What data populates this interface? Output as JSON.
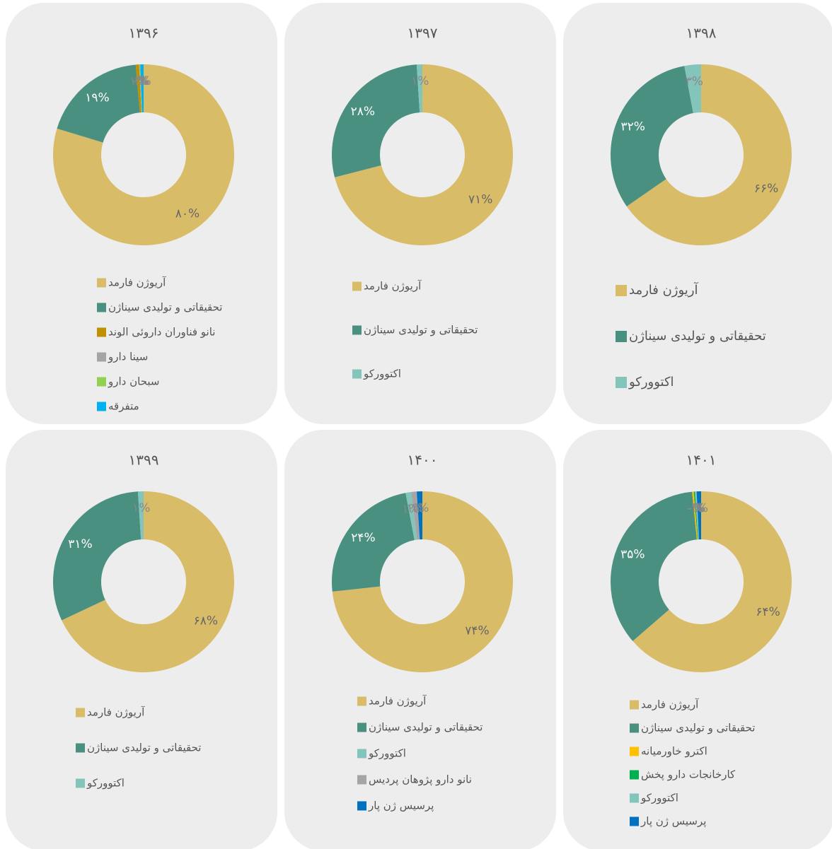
{
  "chart_data": [
    {
      "type": "pie",
      "title": "۱۳۹۶",
      "categories": [
        "آریوژن فارمد",
        "تحقیقاتی و تولیدی سیناژن",
        "نانو فناوران داروئی الوند",
        "سینا دارو",
        "سبحان دارو",
        "متفرقه"
      ],
      "values": [
        80,
        19,
        0.6,
        0.1,
        0.1,
        0.6
      ],
      "value_labels": [
        "۸۰%",
        "۱۹%",
        "۱%",
        "۰%",
        "۰%",
        "۱%"
      ],
      "colors": [
        "#d9bc68",
        "#4a9080",
        "#bf9000",
        "#a5a5a5",
        "#92d050",
        "#00b0f0"
      ]
    },
    {
      "type": "pie",
      "title": "۱۳۹۷",
      "categories": [
        "آریوژن فارمد",
        "تحقیقاتی و تولیدی سیناژن",
        "اکتوورکو"
      ],
      "values": [
        71,
        28,
        1
      ],
      "value_labels": [
        "۷۱%",
        "۲۸%",
        "۱%"
      ],
      "colors": [
        "#d9bc68",
        "#4a9080",
        "#84c5bb"
      ]
    },
    {
      "type": "pie",
      "title": "۱۳۹۸",
      "categories": [
        "آریوژن فارمد",
        "تحقیقاتی و تولیدی سیناژن",
        "اکتوورکو"
      ],
      "values": [
        66,
        32,
        3
      ],
      "value_labels": [
        "۶۶%",
        "۳۲%",
        "۳%"
      ],
      "colors": [
        "#d9bc68",
        "#4a9080",
        "#84c5bb"
      ]
    },
    {
      "type": "pie",
      "title": "۱۳۹۹",
      "categories": [
        "آریوژن فارمد",
        "تحقیقاتی و تولیدی سیناژن",
        "اکتوورکو"
      ],
      "values": [
        68,
        31,
        1
      ],
      "value_labels": [
        "۶۸%",
        "۳۱%",
        "۱%"
      ],
      "colors": [
        "#d9bc68",
        "#4a9080",
        "#84c5bb"
      ]
    },
    {
      "type": "pie",
      "title": "۱۴۰۰",
      "categories": [
        "آریوژن فارمد",
        "تحقیقاتی و تولیدی سیناژن",
        "اکتوورکو",
        "نانو دارو پژوهان پردیس",
        "پرسیس ژن پار"
      ],
      "values": [
        74,
        24,
        1,
        1,
        1
      ],
      "value_labels": [
        "۷۴%",
        "۲۴%",
        "۱%",
        "۱%",
        "۱%"
      ],
      "colors": [
        "#d9bc68",
        "#4a9080",
        "#84c5bb",
        "#a5a5a5",
        "#0070c0"
      ]
    },
    {
      "type": "pie",
      "title": "۱۴۰۱",
      "categories": [
        "آریوژن فارمد",
        "تحقیقاتی و تولیدی سیناژن",
        "اکترو خاورمیانه",
        "کارخانجات دارو پخش",
        "اکتوورکو",
        "پرسیس ژن پار"
      ],
      "values": [
        64,
        35,
        0.3,
        0.2,
        0.3,
        0.8
      ],
      "value_labels": [
        "۶۴%",
        "۳۵%",
        "۰%",
        "۰%",
        "۰%",
        "۱%"
      ],
      "colors": [
        "#d9bc68",
        "#4a9080",
        "#ffc000",
        "#00b050",
        "#84c5bb",
        "#0070c0"
      ]
    }
  ]
}
